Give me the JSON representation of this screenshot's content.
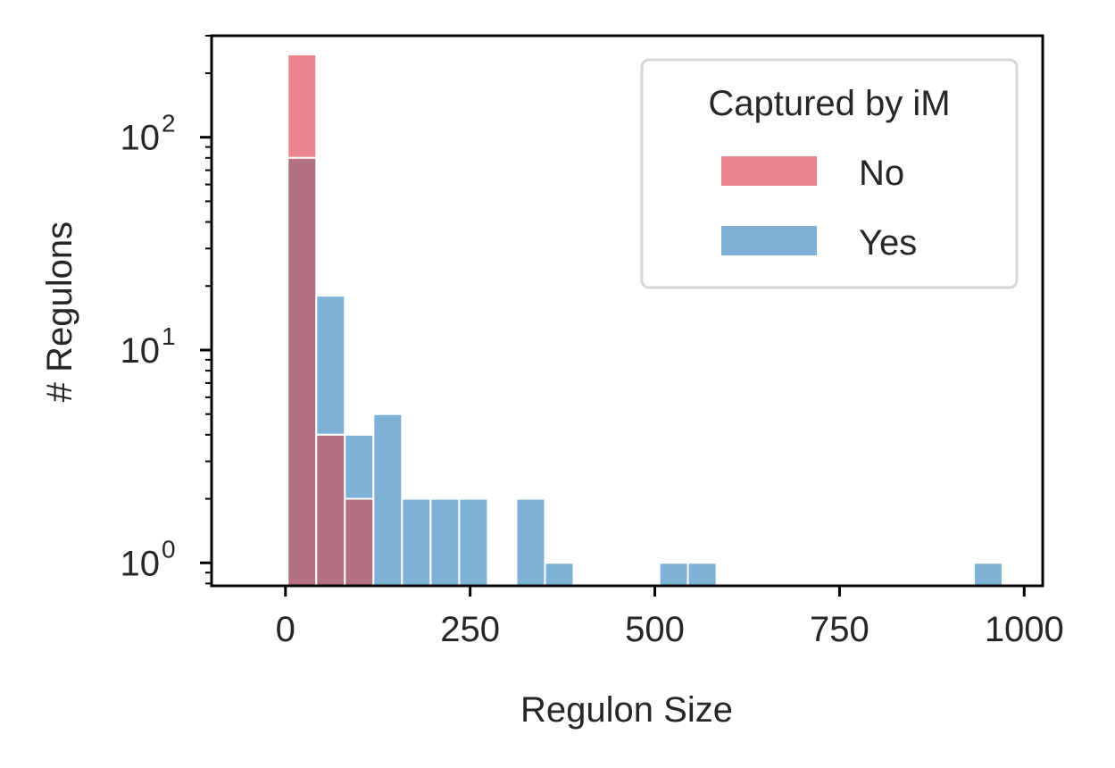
{
  "chart_data": {
    "type": "bar",
    "subtype": "histogram",
    "xlabel": "Regulon Size",
    "ylabel": "# Regulons",
    "xlim": [
      -100,
      1025
    ],
    "ylim": [
      0.78,
      300
    ],
    "yscale": "log",
    "x_ticks": [
      0,
      250,
      500,
      750,
      1000
    ],
    "x_tick_labels": [
      "0",
      "250",
      "500",
      "750",
      "1000"
    ],
    "y_ticks": [
      {
        "value": 1,
        "base": "10",
        "exponent": "0"
      },
      {
        "value": 10,
        "base": "10",
        "exponent": "1"
      },
      {
        "value": 100,
        "base": "10",
        "exponent": "2"
      }
    ],
    "grid": false,
    "bin_edges": [
      3,
      41.7,
      80.4,
      119.1,
      157.8,
      196.5,
      235.2,
      273.9,
      312.6,
      351.3,
      390,
      428.7,
      467.4,
      506.1,
      544.8,
      583.5,
      622.2,
      660.9,
      699.6,
      738.3,
      777,
      815.7,
      854.4,
      893.1,
      931.8,
      970.5
    ],
    "legend": {
      "title": "Captured by iM",
      "position": "top-right"
    },
    "series": [
      {
        "name": "No",
        "color": "#e8868b",
        "counts": [
          245,
          4,
          2,
          0,
          0,
          0,
          0,
          0,
          0,
          0,
          0,
          0,
          0,
          0,
          0,
          0,
          0,
          0,
          0,
          0,
          0,
          0,
          0,
          0,
          0
        ]
      },
      {
        "name": "Yes",
        "color": "#7fb1d7",
        "counts": [
          80,
          18,
          4,
          5,
          2,
          2,
          2,
          0,
          2,
          1,
          0,
          0,
          0,
          1,
          1,
          0,
          0,
          0,
          0,
          0,
          0,
          0,
          0,
          0,
          1
        ]
      }
    ],
    "overlap_color": "#b07080"
  }
}
